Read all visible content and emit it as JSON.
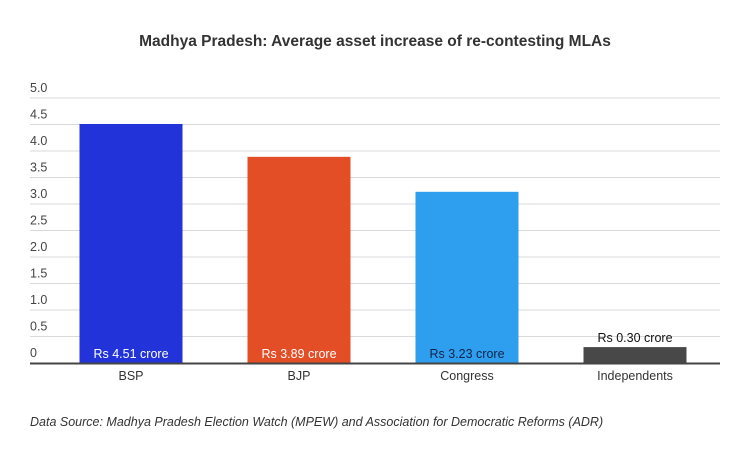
{
  "chart_data": {
    "type": "bar",
    "title": "Madhya Pradesh: Average asset  increase of re-contesting MLAs",
    "xlabel": "",
    "ylabel": "",
    "categories": [
      "BSP",
      "BJP",
      "Congress",
      "Independents"
    ],
    "values": [
      4.51,
      3.89,
      3.23,
      0.3
    ],
    "data_labels": [
      "Rs 4.51 crore",
      "Rs 3.89 crore",
      "Rs 3.23 crore",
      "Rs 0.30 crore"
    ],
    "colors": [
      "#2233d9",
      "#e34e26",
      "#2e9eee",
      "#484848"
    ],
    "label_colors": [
      "#ffffff",
      "#ffffff",
      "#13234a",
      "#111111"
    ],
    "ylim": [
      0,
      5.0
    ],
    "yticks": [
      "0",
      "0.5",
      "1.0",
      "1.5",
      "2.0",
      "2.5",
      "3.0",
      "3.5",
      "4.0",
      "4.5",
      "5.0"
    ],
    "grid": true,
    "legend": "none"
  },
  "source": "Data Source: Madhya Pradesh Election Watch (MPEW) and Association for Democratic Reforms (ADR)"
}
